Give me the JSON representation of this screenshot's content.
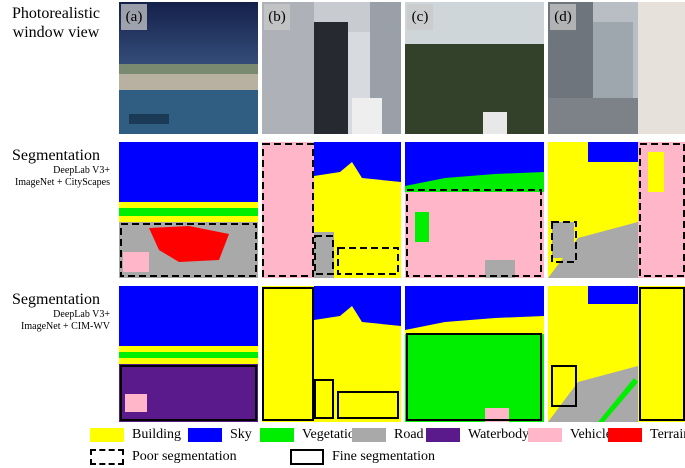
{
  "rows": {
    "photo": {
      "title_line1": "Photorealistic",
      "title_line2": "window view"
    },
    "seg_cityscapes": {
      "title": "Segmentation",
      "sub_line1": "DeepLab V3+",
      "sub_line2": "ImageNet + CityScapes"
    },
    "seg_cimwv": {
      "title": "Segmentation",
      "sub_line1": "DeepLab V3+",
      "sub_line2": "ImageNet + CIM-WV"
    }
  },
  "columns": [
    "(a)",
    "(b)",
    "(c)",
    "(d)"
  ],
  "legend": {
    "classes": [
      {
        "label": "Building",
        "color": "#ffff00"
      },
      {
        "label": "Sky",
        "color": "#0000ff"
      },
      {
        "label": "Vegetation",
        "color": "#00ee00"
      },
      {
        "label": "Road",
        "color": "#a9a9a9"
      },
      {
        "label": "Waterbody",
        "color": "#5b1a8b"
      },
      {
        "label": "Vehicle",
        "color": "#ffb6c8"
      },
      {
        "label": "Terrain",
        "color": "#ff0000"
      }
    ],
    "poor_label": "Poor segmentation",
    "fine_label": "Fine segmentation"
  }
}
